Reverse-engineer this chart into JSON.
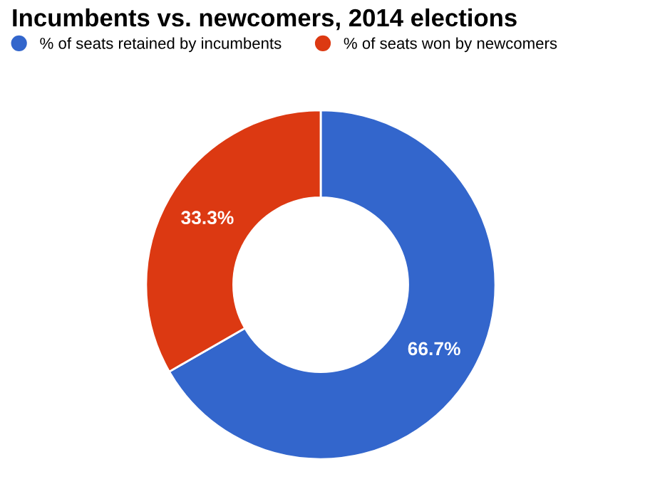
{
  "chart_data": {
    "type": "donut",
    "title": "Incumbents vs. newcomers, 2014 elections",
    "categories": [
      "% of seats retained by incumbents",
      "% of seats won by newcomers"
    ],
    "values": [
      66.7,
      33.3
    ],
    "colors": [
      "#3366cc",
      "#dc3912"
    ],
    "value_labels": [
      "66.7%",
      "33.3%"
    ],
    "legend": "top left"
  }
}
